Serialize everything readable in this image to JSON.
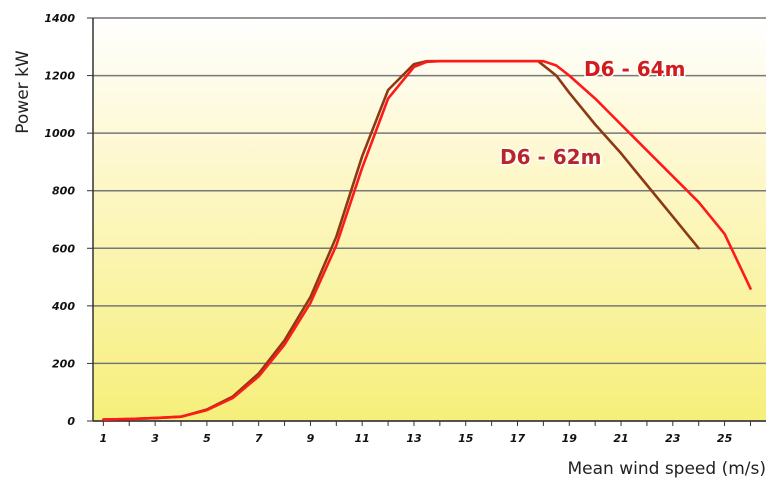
{
  "chart_data": {
    "type": "line",
    "title": "",
    "xlabel": "Mean wind speed (m/s)",
    "ylabel": "Power kW",
    "xlim": [
      0.6,
      26.6
    ],
    "ylim": [
      0,
      1400
    ],
    "x_ticks": [
      1,
      3,
      5,
      7,
      9,
      11,
      13,
      15,
      17,
      19,
      21,
      23,
      25
    ],
    "y_ticks": [
      0,
      200,
      400,
      600,
      800,
      1000,
      1200,
      1400
    ],
    "x_tick_labels": [
      "1",
      "3",
      "5",
      "7",
      "9",
      "11",
      "13",
      "15",
      "17",
      "19",
      "21",
      "23",
      "25"
    ],
    "y_tick_labels": [
      "0",
      "200",
      "400",
      "600",
      "800",
      "1000",
      "1200",
      "1400"
    ],
    "grid": "horizontal",
    "background": "gradient white-to-yellow",
    "series": [
      {
        "name": "D6 - 62m",
        "color": "#8B3A14",
        "x": [
          1,
          2,
          3,
          4,
          5,
          6,
          7,
          8,
          9,
          10,
          11,
          12,
          13,
          13.5,
          14,
          15,
          16,
          17,
          17.8,
          18.5,
          19,
          20,
          21,
          22,
          23,
          24
        ],
        "y": [
          5,
          7,
          10,
          15,
          40,
          85,
          165,
          280,
          430,
          640,
          920,
          1150,
          1240,
          1250,
          1250,
          1250,
          1250,
          1250,
          1250,
          1200,
          1140,
          1030,
          930,
          820,
          710,
          600
        ]
      },
      {
        "name": "D6 - 64m",
        "color": "#FF1A1A",
        "x": [
          1,
          2,
          3,
          4,
          5,
          6,
          7,
          8,
          9,
          10,
          11,
          12,
          13,
          13.5,
          14,
          15,
          16,
          17,
          18,
          18.5,
          19,
          20,
          21,
          22,
          23,
          24,
          25,
          26
        ],
        "y": [
          5,
          7,
          10,
          15,
          38,
          80,
          155,
          265,
          410,
          610,
          880,
          1120,
          1230,
          1248,
          1250,
          1250,
          1250,
          1250,
          1250,
          1235,
          1200,
          1120,
          1030,
          940,
          850,
          760,
          650,
          460
        ]
      }
    ]
  }
}
